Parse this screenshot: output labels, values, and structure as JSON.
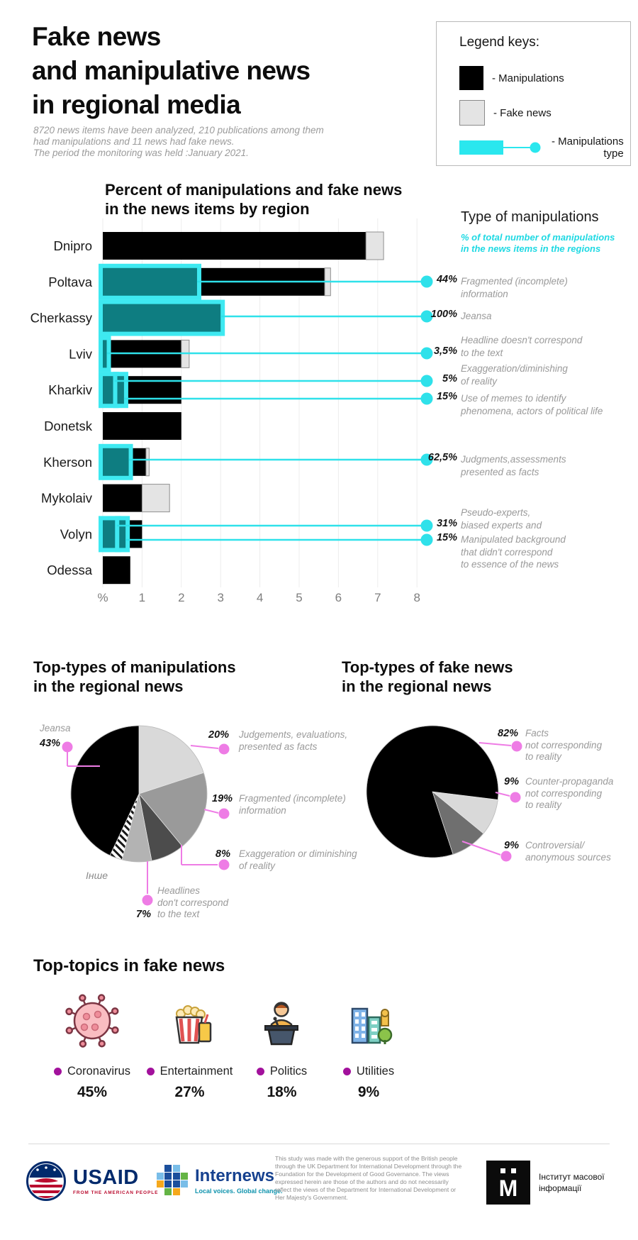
{
  "header": {
    "title": "Fake news\nand manipulative news\nin regional media",
    "subtitle": "8720  news items have been analyzed, 210 publications among them\nhad manipulations and 11 news had fake news.\nThe period the monitoring was held :January 2021."
  },
  "legend": {
    "title": "Legend keys:",
    "items": [
      {
        "id": "manipulations",
        "label": "- Manipulations"
      },
      {
        "id": "fake-news",
        "label": "- Fake news"
      },
      {
        "id": "manipulations-type",
        "label": "- Manipulations\ntype"
      }
    ]
  },
  "type_panel": {
    "title": "Type of manipulations",
    "subtitle": "% of total number of manipulations\nin the news items in the regions"
  },
  "chart_data": [
    {
      "id": "manipulations-by-region",
      "type": "bar",
      "title": "Percent of manipulations and fake news\nin the news items by region",
      "xlabel": "%",
      "ylabel": "",
      "xlim": [
        0,
        8
      ],
      "x_ticks": [
        "%",
        "1",
        "2",
        "3",
        "4",
        "5",
        "6",
        "7",
        "8"
      ],
      "grid": true,
      "categories": [
        "Dnipro",
        "Poltava",
        "Cherkassy",
        "Lviv",
        "Kharkiv",
        "Donetsk",
        "Kherson",
        "Mykolaiv",
        "Volyn",
        "Odessa"
      ],
      "series": [
        {
          "name": "Manipulations",
          "values": [
            6.7,
            5.65,
            3.0,
            2.0,
            2.0,
            2.0,
            1.1,
            1.0,
            1.0,
            0.7
          ]
        },
        {
          "name": "Fake news",
          "values": [
            0.45,
            0.15,
            0,
            0.2,
            0,
            0,
            0.08,
            0.7,
            0,
            0
          ]
        }
      ],
      "type_highlights": [
        {
          "region": "Poltava",
          "ranges": [
            [
              0,
              2.4
            ]
          ]
        },
        {
          "region": "Cherkassy",
          "ranges": [
            [
              0,
              3.0
            ]
          ]
        },
        {
          "region": "Lviv",
          "ranges": [
            [
              0,
              0.1
            ]
          ]
        },
        {
          "region": "Kharkiv",
          "ranges": [
            [
              0,
              0.3
            ],
            [
              0.37,
              0.54
            ]
          ]
        },
        {
          "region": "Kherson",
          "ranges": [
            [
              0,
              0.66
            ]
          ]
        },
        {
          "region": "Volyn",
          "ranges": [
            [
              0,
              0.36
            ],
            [
              0.42,
              0.58
            ]
          ]
        }
      ],
      "callouts": [
        {
          "region": "Poltava",
          "hl": 0,
          "pct": "44%",
          "label": "Fragmented (incomplete)\ninformation"
        },
        {
          "region": "Cherkassy",
          "hl": 0,
          "pct": "100%",
          "label": "Jeansa"
        },
        {
          "region": "Lviv",
          "hl": 0,
          "pct": "3,5%",
          "label": "Headline doesn't correspond\nto the text"
        },
        {
          "region": "Kharkiv",
          "hl": 0,
          "pct": "5%",
          "label": "Exaggeration/diminishing\nof reality"
        },
        {
          "region": "Kharkiv",
          "hl": 1,
          "pct": "15%",
          "label": "Use of memes to identify\nphenomena, actors of political life"
        },
        {
          "region": "Kherson",
          "hl": 0,
          "pct": "62,5%",
          "label": "Judgments,assessments\npresented as facts"
        },
        {
          "region": "Volyn",
          "hl": 0,
          "pct": "31%",
          "label": "Pseudo-experts,\nbiased experts and"
        },
        {
          "region": "Volyn",
          "hl": 1,
          "pct": "15%",
          "label": "Manipulated background\nthat didn't correspond\nto essence of the news"
        }
      ]
    },
    {
      "id": "top-types-manipulations",
      "type": "pie",
      "title": "Top-types of manipulations\nin the regional news",
      "slices": [
        {
          "label": "Judgements, evaluations,\npresented as facts",
          "pct": 20,
          "color": "#d9d9d9"
        },
        {
          "label": "Fragmented (incomplete)\ninformation",
          "pct": 19,
          "color": "#9a9a9a"
        },
        {
          "label": "Exaggeration or diminishing\nof reality",
          "pct": 8,
          "color": "#4c4c4c"
        },
        {
          "label": "Headlines\ndon't correspond\nto the text",
          "pct": 7,
          "color": "#b3b3b3"
        },
        {
          "label": "Інше",
          "pct": 3,
          "color": "hatch"
        },
        {
          "label": "Jeansa",
          "pct": 43,
          "color": "#000000"
        }
      ]
    },
    {
      "id": "top-types-fake-news",
      "type": "pie",
      "title": "Top-types of fake news\nin the regional news",
      "start_angle_deg": 97,
      "slices": [
        {
          "label": "Counter-propaganda\nnot corresponding\nto reality",
          "pct": 9,
          "color": "#d9d9d9"
        },
        {
          "label": "Controversial/\nanonymous sources",
          "pct": 9,
          "color": "#6f6f6f"
        },
        {
          "label": "Facts\nnot corresponding\nto reality",
          "pct": 82,
          "color": "#000000"
        }
      ]
    },
    {
      "id": "top-topics-fake-news",
      "type": "bar",
      "title": "Top-topics in fake news",
      "categories": [
        "Coronavirus",
        "Entertainment",
        "Politics",
        "Utilities"
      ],
      "values": [
        45,
        27,
        18,
        9
      ],
      "value_labels": [
        "45%",
        "27%",
        "18%",
        "9%"
      ],
      "icons": [
        "coronavirus-icon",
        "entertainment-icon",
        "politics-icon",
        "utilities-icon"
      ]
    }
  ],
  "footer": {
    "usaid": {
      "name": "USAID",
      "tagline": "FROM THE AMERICAN PEOPLE"
    },
    "internews": {
      "name": "Internews",
      "tagline": "Local voices. Global change."
    },
    "disclaimer": "This study was made with the generous support of the British people through the UK Department for International Development through the Foundation for the Development of Good Governance. The views expressed herein are those of the authors and do not necessarily reflect the views of the Department for International Development or Her Majesty's Government.",
    "imi": {
      "name": "Інститут масової\nінформації"
    }
  },
  "colors": {
    "manipulations": "#000000",
    "fake_news": "#e4e4e4",
    "type_fill": "#0e7d81",
    "type_glow": "#3ee9f1",
    "callout_cyan": "#2fe1ea",
    "cyan_text": "#1fd9e3",
    "magenta": "#ee7ce5",
    "topic_dot": "#a2119c"
  }
}
